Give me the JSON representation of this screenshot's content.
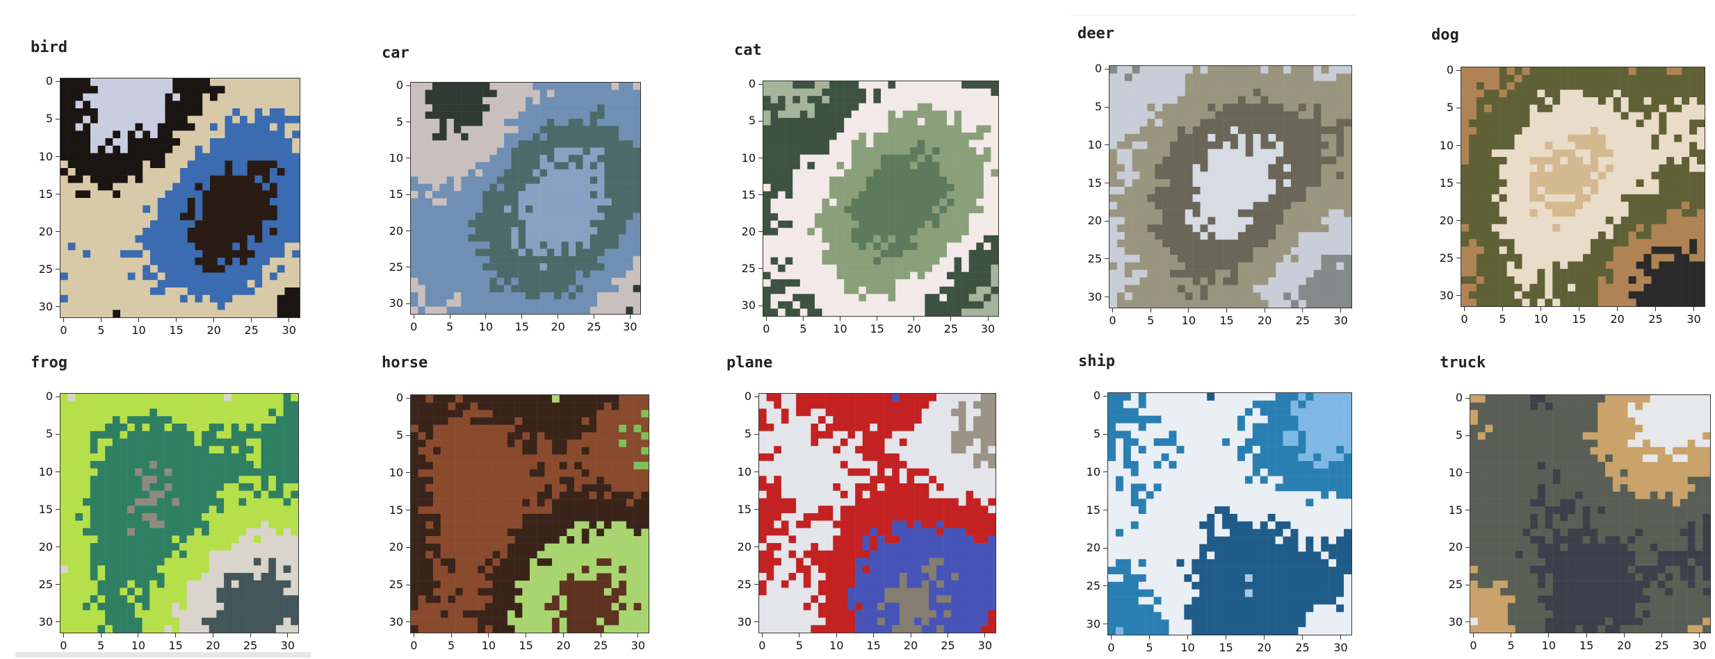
{
  "grid": {
    "panels": [
      {
        "title": "bird",
        "xticks": [
          "0",
          "5",
          "10",
          "15",
          "20",
          "25",
          "30"
        ],
        "yticks": [
          "0",
          "5",
          "10",
          "15",
          "20",
          "25",
          "30"
        ],
        "palette": [
          "#2a1a14",
          "#3b6bb0",
          "#d8c9a8",
          "#1a1412",
          "#c9cde0"
        ]
      },
      {
        "title": "car",
        "xticks": [
          "0",
          "5",
          "10",
          "15",
          "20",
          "25",
          "30"
        ],
        "yticks": [
          "0",
          "5",
          "10",
          "15",
          "20",
          "25",
          "30"
        ],
        "palette": [
          "#8aa0c2",
          "#4b6a6a",
          "#6f8fb4",
          "#c9c0be",
          "#2f3a34"
        ]
      },
      {
        "title": "cat",
        "xticks": [
          "0",
          "5",
          "10",
          "15",
          "20",
          "25",
          "30"
        ],
        "yticks": [
          "0",
          "5",
          "10",
          "15",
          "20",
          "25",
          "30"
        ],
        "palette": [
          "#5d7a5c",
          "#8aa07a",
          "#f2e9e8",
          "#3d5240",
          "#a6b49b"
        ]
      },
      {
        "title": "deer",
        "xticks": [
          "0",
          "5",
          "10",
          "15",
          "20",
          "25",
          "30"
        ],
        "yticks": [
          "0",
          "5",
          "10",
          "15",
          "20",
          "25",
          "30"
        ],
        "palette": [
          "#d6dbe4",
          "#6b6658",
          "#9a957f",
          "#c8cdd7",
          "#858989"
        ]
      },
      {
        "title": "dog",
        "xticks": [
          "0",
          "5",
          "10",
          "15",
          "20",
          "25",
          "30"
        ],
        "yticks": [
          "0",
          "5",
          "10",
          "15",
          "20",
          "25",
          "30"
        ],
        "palette": [
          "#d4b88f",
          "#e9dcc8",
          "#5f6035",
          "#b08354",
          "#2b2a2a"
        ]
      },
      {
        "title": "frog",
        "xticks": [
          "0",
          "5",
          "10",
          "15",
          "20",
          "25",
          "30"
        ],
        "yticks": [
          "0",
          "5",
          "10",
          "15",
          "20",
          "25",
          "30"
        ],
        "palette": [
          "#8e8a80",
          "#2f7f63",
          "#b6e04a",
          "#d9d4cc",
          "#43565a"
        ]
      },
      {
        "title": "horse",
        "xticks": [
          "0",
          "5",
          "10",
          "15",
          "20",
          "25",
          "30"
        ],
        "yticks": [
          "0",
          "5",
          "10",
          "15",
          "20",
          "25",
          "30"
        ],
        "palette": [
          "#7fc05a",
          "#8a4a2e",
          "#3a2419",
          "#a8d56f",
          "#5e3221"
        ]
      },
      {
        "title": "plane",
        "xticks": [
          "0",
          "5",
          "10",
          "15",
          "20",
          "25",
          "30"
        ],
        "yticks": [
          "0",
          "5",
          "10",
          "15",
          "20",
          "25",
          "30"
        ],
        "palette": [
          "#9b9385",
          "#e3e5ea",
          "#c42222",
          "#4654b8",
          "#847d70"
        ]
      },
      {
        "title": "ship",
        "xticks": [
          "0",
          "5",
          "10",
          "15",
          "20",
          "25",
          "30"
        ],
        "yticks": [
          "0",
          "5",
          "10",
          "15",
          "20",
          "25",
          "30"
        ],
        "palette": [
          "#7fb8e6",
          "#2a7fb2",
          "#e9eff4",
          "#1f5c8a",
          "#a6c9e4"
        ]
      },
      {
        "title": "truck",
        "xticks": [
          "0",
          "5",
          "10",
          "15",
          "20",
          "25",
          "30"
        ],
        "yticks": [
          "0",
          "5",
          "10",
          "15",
          "20",
          "25",
          "30"
        ],
        "palette": [
          "#e6e8ea",
          "#c9a36a",
          "#5a5f55",
          "#3d3f4a",
          "#b8bcc6"
        ]
      }
    ]
  }
}
